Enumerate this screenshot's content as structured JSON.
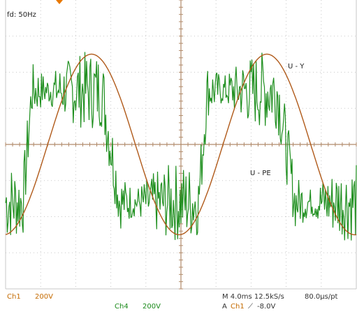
{
  "colors": {
    "background": "#ffffff",
    "grid": "#c8c8c8",
    "axis": "#b08a6a",
    "ch1_trace": "#b05a1a",
    "ch4_trace": "#1f8f1f",
    "ch1_label": "#c46a00",
    "ch4_label": "#1a8a1a",
    "trigger_marker": "#e87800"
  },
  "annotations": {
    "frequency": "fd: 50Hz",
    "trace_uy": "U - Y",
    "trace_upe": "U - PE"
  },
  "readout": {
    "ch1_name": "Ch1",
    "ch1_scale": "200V",
    "ch4_name": "Ch4",
    "ch4_scale": "200V",
    "timebase": "M 4.0ms 12.5kS/s",
    "resolution": "80.0µs/pt",
    "trigger_prefix": "A",
    "trigger_source": "Ch1",
    "trigger_slope": "⟋",
    "trigger_level": "-8.0V"
  },
  "chart_data": {
    "type": "line",
    "title": "",
    "xlabel": "",
    "ylabel": "",
    "divisions": {
      "x": 10,
      "y": 8
    },
    "xlim_div": [
      0,
      10
    ],
    "ylim_div": [
      -4,
      4
    ],
    "grid": true,
    "series": [
      {
        "name": "U - Y",
        "channel": "Ch1",
        "shape": "sinusoid",
        "amplitude_div": 2.5,
        "period_div": 5.0,
        "phase_div": 1.2,
        "offset_div": 0
      },
      {
        "name": "U - PE",
        "channel": "Ch4",
        "shape": "noisy-square-like",
        "levels_div": [
          1.5,
          -1.6
        ],
        "transition_div": [
          0.5,
          3.0,
          5.5,
          8.0
        ],
        "noise_div": 1.1
      }
    ]
  }
}
